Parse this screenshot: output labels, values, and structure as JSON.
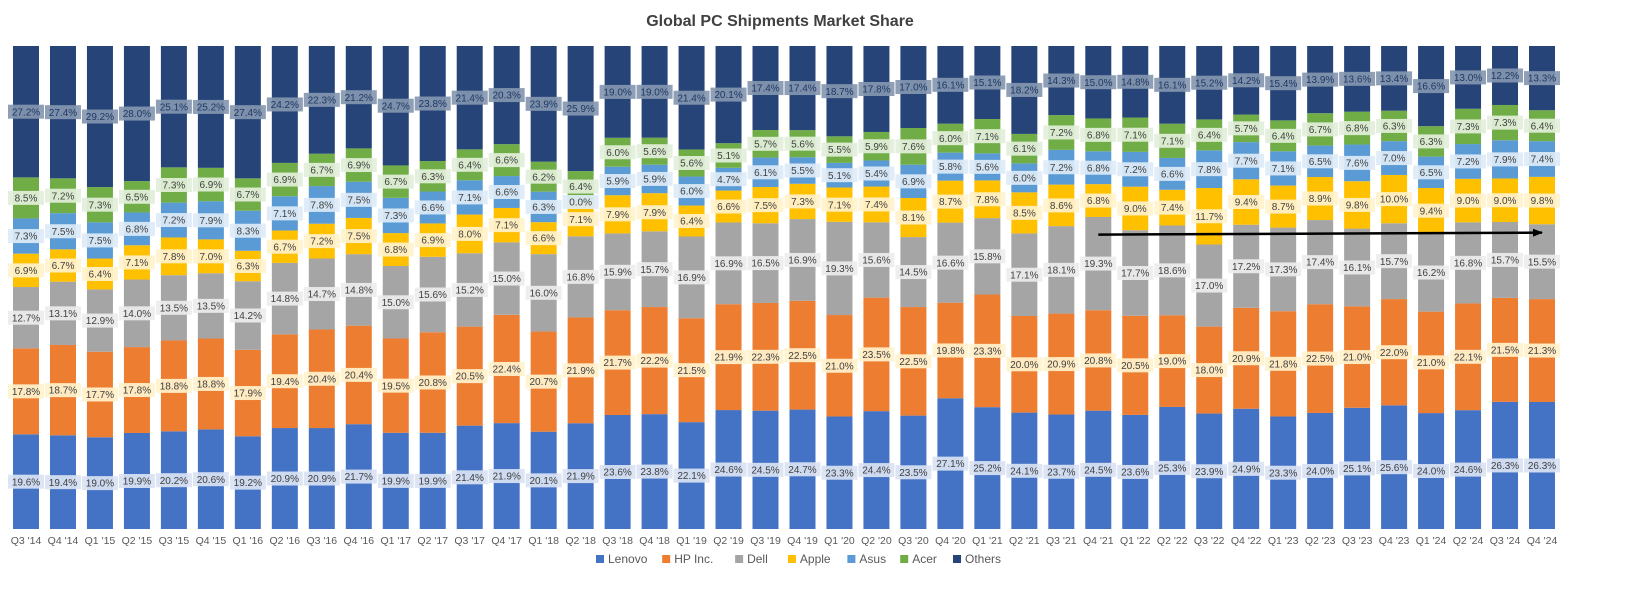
{
  "chart_data": {
    "type": "bar",
    "stacked": true,
    "normalized": true,
    "title": "Global PC Shipments Market Share",
    "xlabel": "",
    "ylabel": "",
    "ylim": [
      0,
      100
    ],
    "grid": false,
    "legend_position": "bottom",
    "categories": [
      "Q3 '14",
      "Q4 '14",
      "Q1 '15",
      "Q2 '15",
      "Q3 '15",
      "Q4 '15",
      "Q1 '16",
      "Q2 '16",
      "Q3 '16",
      "Q4 '16",
      "Q1 '17",
      "Q2 '17",
      "Q3 '17",
      "Q4 '17",
      "Q1 '18",
      "Q2 '18",
      "Q3 '18",
      "Q4 '18",
      "Q1 '19",
      "Q2 '19",
      "Q3 '19",
      "Q4 '19",
      "Q1 '20",
      "Q2 '20",
      "Q3 '20",
      "Q4 '20",
      "Q1 '21",
      "Q2 '21",
      "Q3 '21",
      "Q4 '21",
      "Q1 '22",
      "Q2 '22",
      "Q3 '22",
      "Q4 '22",
      "Q1 '23",
      "Q2 '23",
      "Q3 '23",
      "Q4 '23",
      "Q1 '24",
      "Q2 '24",
      "Q3 '24",
      "Q4 '24"
    ],
    "series": [
      {
        "name": "Lenovo",
        "color": "#4472C4",
        "label_bg": "#DAE3F3",
        "values": [
          19.6,
          19.4,
          19.0,
          19.9,
          20.2,
          20.6,
          19.2,
          20.9,
          20.9,
          21.7,
          19.9,
          19.9,
          21.4,
          21.9,
          20.1,
          21.9,
          23.6,
          23.8,
          22.1,
          24.6,
          24.5,
          24.7,
          23.3,
          24.4,
          23.5,
          27.1,
          25.2,
          24.1,
          23.7,
          24.5,
          23.6,
          25.3,
          23.9,
          24.9,
          23.3,
          24.0,
          25.1,
          25.6,
          24.0,
          24.6,
          26.3,
          26.3
        ]
      },
      {
        "name": "HP Inc.",
        "color": "#ED7D31",
        "label_bg": "#FFF2CC",
        "values": [
          17.8,
          18.7,
          17.7,
          17.8,
          18.8,
          18.8,
          17.9,
          19.4,
          20.4,
          20.4,
          19.5,
          20.8,
          20.5,
          22.4,
          20.7,
          21.9,
          21.7,
          22.2,
          21.5,
          21.9,
          22.3,
          22.5,
          21.0,
          23.5,
          22.5,
          19.8,
          23.3,
          20.0,
          20.9,
          20.8,
          20.5,
          19.0,
          18.0,
          20.9,
          21.8,
          22.5,
          21.0,
          22.0,
          21.0,
          22.1,
          21.5,
          21.3
        ]
      },
      {
        "name": "Dell",
        "color": "#A5A5A5",
        "label_bg": "#EDEDED",
        "values": [
          12.7,
          13.1,
          12.9,
          14.0,
          13.5,
          13.5,
          14.2,
          14.8,
          14.7,
          14.8,
          15.0,
          15.6,
          15.2,
          15.0,
          16.0,
          16.8,
          15.9,
          15.7,
          16.9,
          16.9,
          16.5,
          16.9,
          19.3,
          15.6,
          14.5,
          16.6,
          15.8,
          17.1,
          18.1,
          19.3,
          17.7,
          18.6,
          17.0,
          17.2,
          17.3,
          17.4,
          16.1,
          15.7,
          16.2,
          16.8,
          15.7,
          15.5
        ]
      },
      {
        "name": "Apple",
        "color": "#FFC000",
        "label_bg": "#FFF2CC",
        "values": [
          6.9,
          6.7,
          6.4,
          7.1,
          7.8,
          7.0,
          6.3,
          6.7,
          7.2,
          7.5,
          6.8,
          6.9,
          8.0,
          7.1,
          6.6,
          7.1,
          7.9,
          7.9,
          6.4,
          6.6,
          7.5,
          7.3,
          7.1,
          7.4,
          8.1,
          8.7,
          7.8,
          8.5,
          8.6,
          6.8,
          9.0,
          7.4,
          11.7,
          9.4,
          8.7,
          8.9,
          9.8,
          10.0,
          9.4,
          9.0,
          9.0,
          9.8
        ]
      },
      {
        "name": "Asus",
        "color": "#5B9BD5",
        "label_bg": "#DDEBF7",
        "values": [
          7.3,
          7.5,
          7.5,
          6.8,
          7.2,
          7.9,
          8.3,
          7.1,
          7.8,
          7.5,
          7.3,
          6.6,
          7.1,
          6.6,
          6.3,
          0.0,
          5.9,
          5.9,
          6.0,
          4.7,
          6.1,
          5.5,
          5.1,
          5.4,
          6.9,
          5.8,
          5.6,
          6.0,
          7.2,
          6.8,
          7.2,
          6.6,
          7.8,
          7.7,
          7.1,
          6.5,
          7.6,
          7.0,
          6.5,
          7.2,
          7.9,
          7.4
        ]
      },
      {
        "name": "Acer",
        "color": "#70AD47",
        "label_bg": "#E2EFDA",
        "values": [
          8.5,
          7.2,
          7.3,
          6.5,
          7.3,
          6.9,
          6.7,
          6.9,
          6.7,
          6.9,
          6.7,
          6.3,
          6.4,
          6.6,
          6.2,
          6.4,
          6.0,
          5.6,
          5.6,
          5.1,
          5.7,
          5.6,
          5.5,
          5.9,
          7.6,
          6.0,
          7.1,
          6.1,
          7.2,
          6.8,
          7.1,
          7.1,
          6.4,
          5.7,
          6.4,
          6.7,
          6.8,
          6.3,
          6.3,
          7.3,
          7.3,
          6.4
        ]
      },
      {
        "name": "Others",
        "color": "#264478",
        "label_bg": "#8497B0",
        "values": [
          27.2,
          27.4,
          29.2,
          28.0,
          25.1,
          25.2,
          27.4,
          24.2,
          22.3,
          21.2,
          24.7,
          23.8,
          21.4,
          20.3,
          23.9,
          25.9,
          19.0,
          19.0,
          21.4,
          20.1,
          17.4,
          17.4,
          18.7,
          17.8,
          17.0,
          16.1,
          15.1,
          18.2,
          14.3,
          15.0,
          14.8,
          16.1,
          15.2,
          14.2,
          15.4,
          13.9,
          13.6,
          13.4,
          16.6,
          13.0,
          12.2,
          13.3
        ]
      }
    ],
    "annotations": [
      {
        "type": "trend-arrow",
        "series": "Dell",
        "from": "Q4 '21",
        "to": "Q4 '24",
        "color": "#000000"
      }
    ]
  }
}
